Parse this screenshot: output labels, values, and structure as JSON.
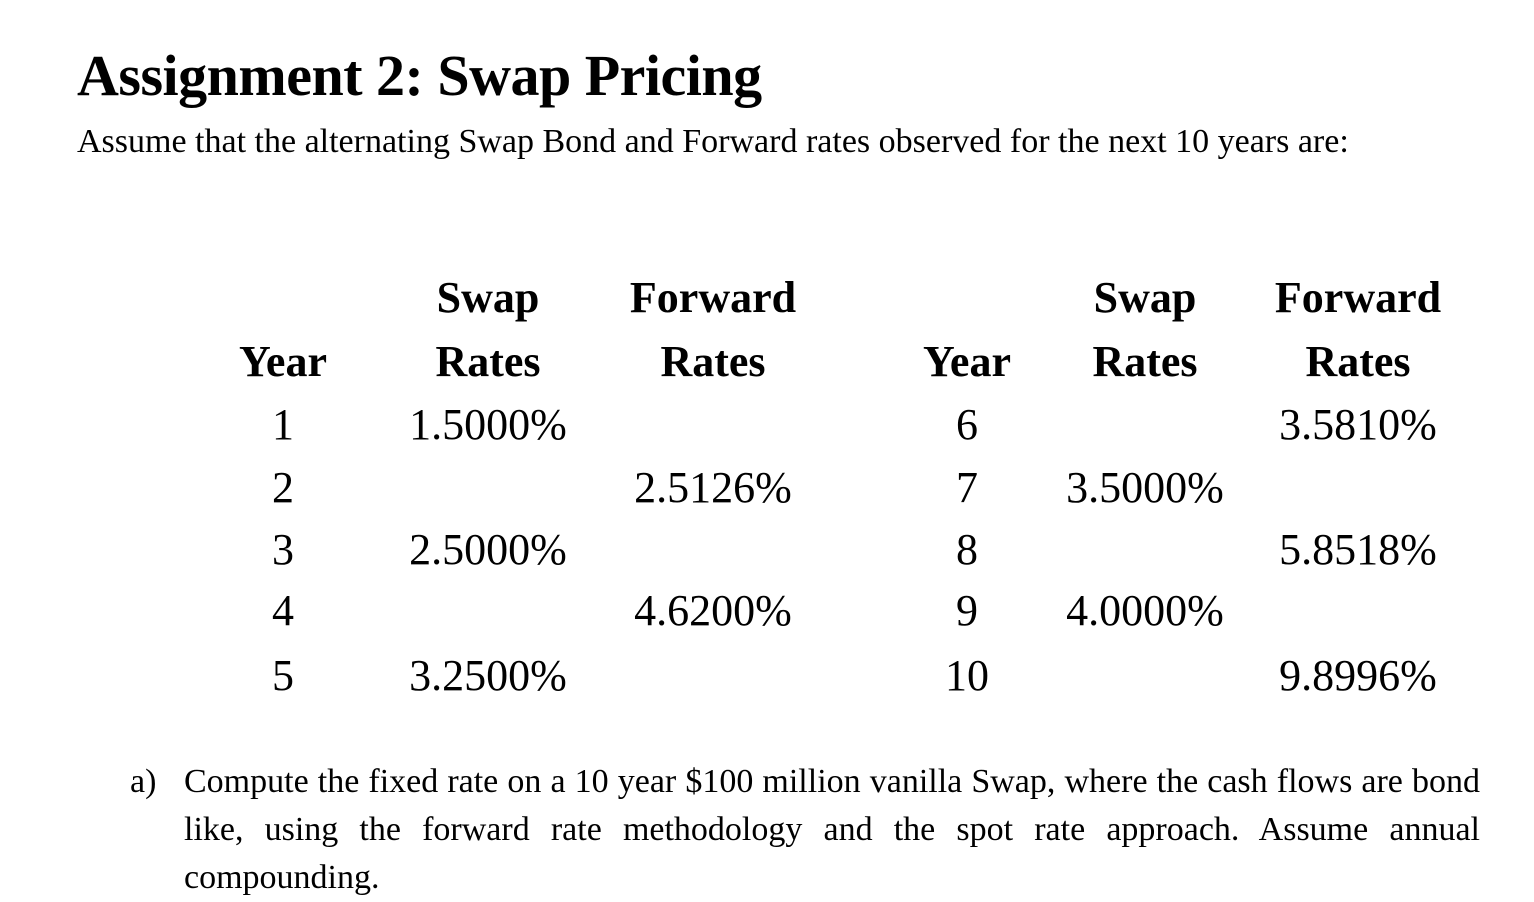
{
  "title": "Assignment 2: Swap Pricing",
  "intro": "Assume that the alternating Swap Bond and Forward rates observed for the next 10 years are:",
  "table": {
    "headers": {
      "year": "Year",
      "swap_line1": "Swap",
      "swap_line2": "Rates",
      "forward_line1": "Forward",
      "forward_line2": "Rates"
    },
    "left": [
      {
        "year": "1",
        "swap": "1.5000%",
        "forward": ""
      },
      {
        "year": "2",
        "swap": "",
        "forward": "2.5126%"
      },
      {
        "year": "3",
        "swap": "2.5000%",
        "forward": ""
      },
      {
        "year": "4",
        "swap": "",
        "forward": "4.6200%"
      },
      {
        "year": "5",
        "swap": "3.2500%",
        "forward": ""
      }
    ],
    "right": [
      {
        "year": "6",
        "swap": "",
        "forward": "3.5810%"
      },
      {
        "year": "7",
        "swap": "3.5000%",
        "forward": ""
      },
      {
        "year": "8",
        "swap": "",
        "forward": "5.8518%"
      },
      {
        "year": "9",
        "swap": "4.0000%",
        "forward": ""
      },
      {
        "year": "10",
        "swap": "",
        "forward": "9.8996%"
      }
    ]
  },
  "question": {
    "marker": "a)",
    "text": "Compute the fixed rate on a 10 year $100 million vanilla Swap, where the cash flows are bond like, using the forward rate methodology and the spot rate approach. Assume annual compounding."
  }
}
